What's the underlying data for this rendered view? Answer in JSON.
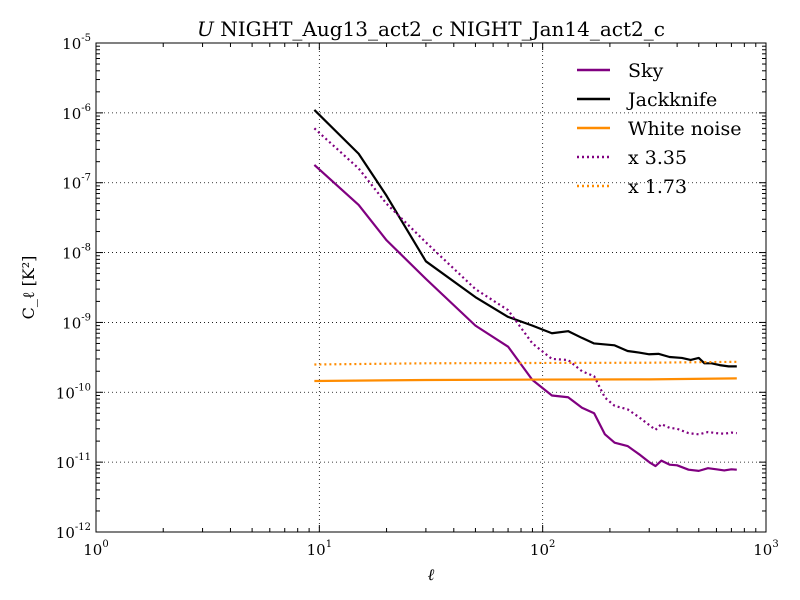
{
  "chart_data": {
    "type": "line",
    "title_prefix": "U",
    "title": "NIGHT_Aug13_act2_c NIGHT_Jan14_act2_c",
    "xlabel": "ℓ",
    "ylabel": "C_ℓ [K²]",
    "xscale": "log",
    "yscale": "log",
    "xlim": [
      1,
      1000
    ],
    "ylim": [
      1e-12,
      1e-05
    ],
    "grid": true,
    "legend_position": "top-right",
    "x_ticks": [
      {
        "value": 1,
        "base": "10",
        "exp": "0"
      },
      {
        "value": 10,
        "base": "10",
        "exp": "1"
      },
      {
        "value": 100,
        "base": "10",
        "exp": "2"
      },
      {
        "value": 1000,
        "base": "10",
        "exp": "3"
      }
    ],
    "y_ticks": [
      {
        "value": 1e-12,
        "base": "10",
        "exp": "-12"
      },
      {
        "value": 1e-11,
        "base": "10",
        "exp": "-11"
      },
      {
        "value": 1e-10,
        "base": "10",
        "exp": "-10"
      },
      {
        "value": 1e-09,
        "base": "10",
        "exp": "-9"
      },
      {
        "value": 1e-08,
        "base": "10",
        "exp": "-8"
      },
      {
        "value": 1e-07,
        "base": "10",
        "exp": "-7"
      },
      {
        "value": 1e-06,
        "base": "10",
        "exp": "-6"
      },
      {
        "value": 1e-05,
        "base": "10",
        "exp": "-5"
      }
    ],
    "series": [
      {
        "name": "Sky",
        "color": "#800080",
        "style": "solid",
        "points": [
          [
            9.5,
            1.8e-07
          ],
          [
            15,
            4.8e-08
          ],
          [
            20,
            1.5e-08
          ],
          [
            30,
            4.2e-09
          ],
          [
            50,
            9e-10
          ],
          [
            70,
            4.5e-10
          ],
          [
            90,
            1.5e-10
          ],
          [
            110,
            9e-11
          ],
          [
            130,
            8.5e-11
          ],
          [
            150,
            6e-11
          ],
          [
            170,
            5e-11
          ],
          [
            190,
            2.5e-11
          ],
          [
            210,
            1.9e-11
          ],
          [
            240,
            1.7e-11
          ],
          [
            270,
            1.3e-11
          ],
          [
            300,
            1e-11
          ],
          [
            320,
            8.8e-12
          ],
          [
            340,
            1.05e-11
          ],
          [
            370,
            9.2e-12
          ],
          [
            400,
            9e-12
          ],
          [
            450,
            7.8e-12
          ],
          [
            500,
            7.5e-12
          ],
          [
            550,
            8.2e-12
          ],
          [
            600,
            7.9e-12
          ],
          [
            650,
            7.6e-12
          ],
          [
            700,
            7.9e-12
          ],
          [
            740,
            7.8e-12
          ]
        ]
      },
      {
        "name": "Jackknife",
        "color": "#000000",
        "style": "solid",
        "points": [
          [
            9.5,
            1.1e-06
          ],
          [
            15,
            2.6e-07
          ],
          [
            20,
            6.5e-08
          ],
          [
            30,
            7.5e-09
          ],
          [
            50,
            2.3e-09
          ],
          [
            70,
            1.2e-09
          ],
          [
            90,
            9e-10
          ],
          [
            110,
            7e-10
          ],
          [
            130,
            7.5e-10
          ],
          [
            150,
            6e-10
          ],
          [
            170,
            5e-10
          ],
          [
            210,
            4.7e-10
          ],
          [
            240,
            3.9e-10
          ],
          [
            270,
            3.7e-10
          ],
          [
            300,
            3.5e-10
          ],
          [
            330,
            3.55e-10
          ],
          [
            370,
            3.2e-10
          ],
          [
            420,
            3.1e-10
          ],
          [
            460,
            2.9e-10
          ],
          [
            500,
            3.1e-10
          ],
          [
            530,
            2.6e-10
          ],
          [
            570,
            2.6e-10
          ],
          [
            620,
            2.45e-10
          ],
          [
            680,
            2.35e-10
          ],
          [
            740,
            2.35e-10
          ]
        ]
      },
      {
        "name": "White noise",
        "color": "#FF8C00",
        "style": "solid",
        "points": [
          [
            9.5,
            1.45e-10
          ],
          [
            30,
            1.5e-10
          ],
          [
            100,
            1.52e-10
          ],
          [
            300,
            1.53e-10
          ],
          [
            740,
            1.58e-10
          ]
        ]
      },
      {
        "name": "x 3.35",
        "color": "#800080",
        "style": "dotted",
        "points": [
          [
            9.5,
            6e-07
          ],
          [
            15,
            1.6e-07
          ],
          [
            20,
            5e-08
          ],
          [
            30,
            1.4e-08
          ],
          [
            50,
            3e-09
          ],
          [
            70,
            1.5e-09
          ],
          [
            90,
            5e-10
          ],
          [
            110,
            3e-10
          ],
          [
            130,
            2.9e-10
          ],
          [
            150,
            2e-10
          ],
          [
            170,
            1.7e-10
          ],
          [
            190,
            8.4e-11
          ],
          [
            210,
            6.4e-11
          ],
          [
            240,
            5.7e-11
          ],
          [
            270,
            4.4e-11
          ],
          [
            300,
            3.4e-11
          ],
          [
            320,
            2.9e-11
          ],
          [
            340,
            3.5e-11
          ],
          [
            370,
            3.1e-11
          ],
          [
            400,
            3e-11
          ],
          [
            450,
            2.6e-11
          ],
          [
            500,
            2.5e-11
          ],
          [
            550,
            2.7e-11
          ],
          [
            600,
            2.6e-11
          ],
          [
            650,
            2.55e-11
          ],
          [
            700,
            2.65e-11
          ],
          [
            740,
            2.6e-11
          ]
        ]
      },
      {
        "name": "x 1.73",
        "color": "#FF8C00",
        "style": "dotted",
        "points": [
          [
            9.5,
            2.5e-10
          ],
          [
            30,
            2.6e-10
          ],
          [
            100,
            2.63e-10
          ],
          [
            300,
            2.65e-10
          ],
          [
            740,
            2.73e-10
          ]
        ]
      }
    ]
  }
}
